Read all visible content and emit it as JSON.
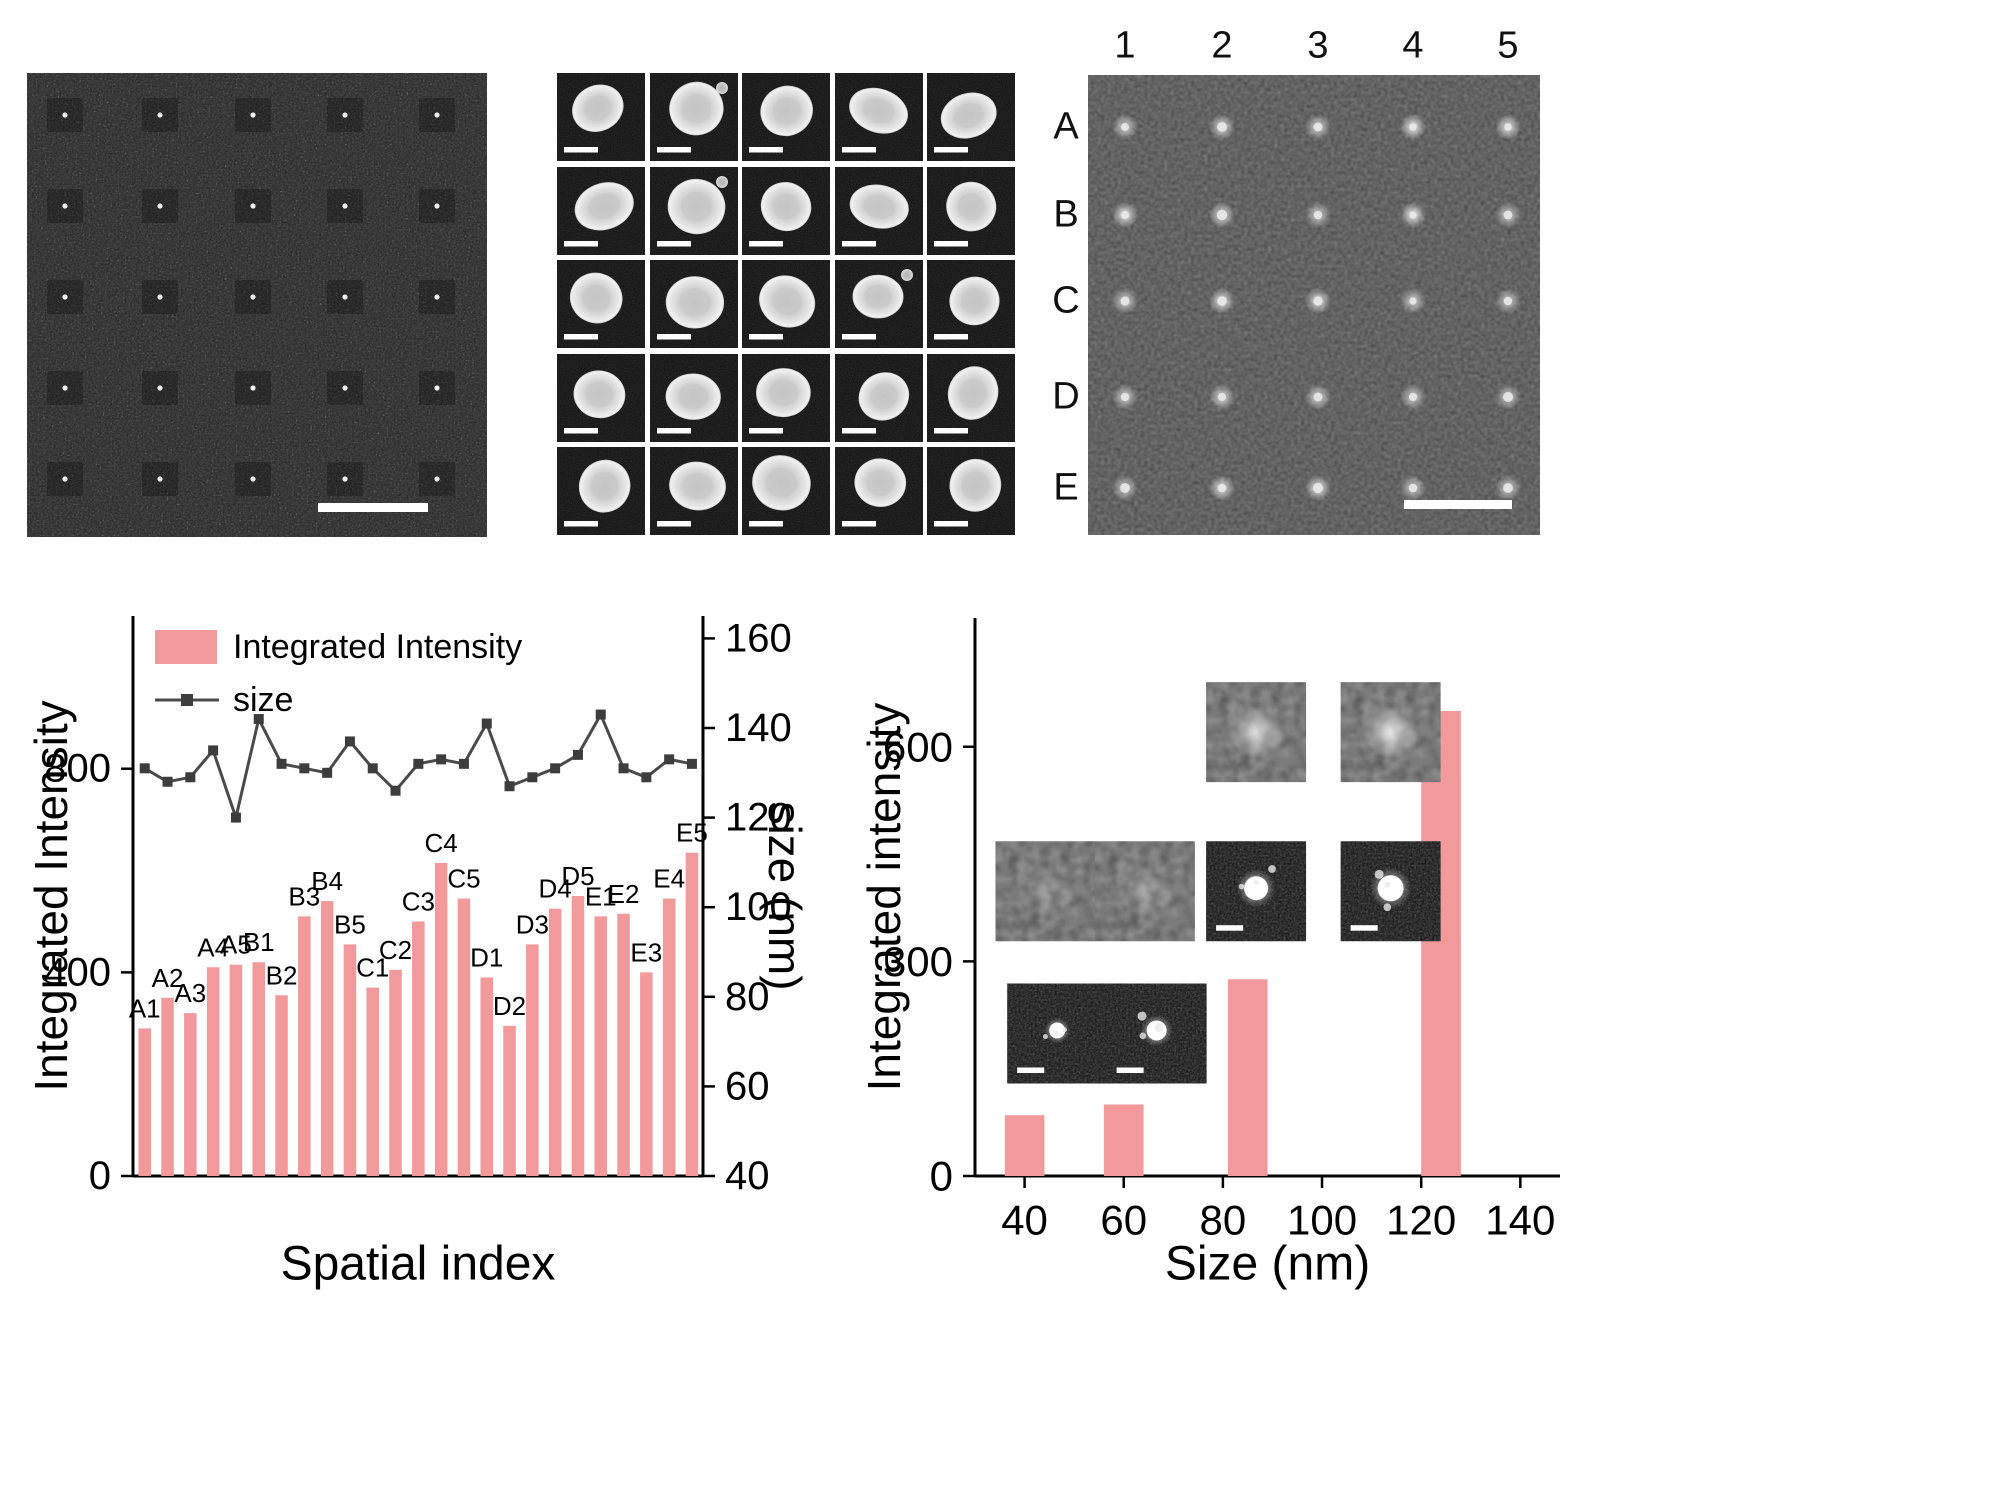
{
  "figure": {
    "panels": {
      "sem_overview": {
        "description_name": "sem-array-overview",
        "scalebar": true,
        "grid_rows": 5,
        "grid_cols": 5
      },
      "particle_gallery": {
        "rows": 5,
        "cols": 5,
        "scalebar_per_cell": true
      },
      "spot_map": {
        "col_labels": [
          "1",
          "2",
          "3",
          "4",
          "5"
        ],
        "row_labels": [
          "A",
          "B",
          "C",
          "D",
          "E"
        ],
        "scalebar": true
      }
    }
  },
  "colors": {
    "bar": "#F2999C",
    "line": "#4a4a4a",
    "marker": "#3d3d3d",
    "axis": "#000000",
    "label_text": "#111111"
  },
  "chart_data": [
    {
      "type": "bar",
      "subtype": "bar+line-dual-axis",
      "xlabel": "Spatial index",
      "ylabel_left": "Integrated Intensity",
      "ylabel_right": "size (nm)",
      "legend": [
        "Integrated Intensity",
        "size"
      ],
      "legend_position": "top-left-inside",
      "categories": [
        "A1",
        "A2",
        "A3",
        "A4",
        "A5",
        "B1",
        "B2",
        "B3",
        "B4",
        "B5",
        "C1",
        "C2",
        "C3",
        "C4",
        "C5",
        "D1",
        "D2",
        "D3",
        "D4",
        "D5",
        "E1",
        "E2",
        "E3",
        "E4",
        "E5"
      ],
      "series": [
        {
          "name": "Integrated Intensity",
          "type": "bar",
          "axis": "left",
          "values": [
            290,
            350,
            320,
            410,
            415,
            420,
            355,
            510,
            540,
            455,
            370,
            405,
            500,
            615,
            545,
            390,
            295,
            455,
            525,
            550,
            510,
            515,
            400,
            545,
            635
          ]
        },
        {
          "name": "size",
          "type": "line",
          "axis": "right",
          "values": [
            131,
            128,
            129,
            135,
            120,
            142,
            132,
            131,
            130,
            137,
            131,
            126,
            132,
            133,
            132,
            141,
            127,
            129,
            131,
            134,
            143,
            131,
            129,
            133,
            132
          ]
        }
      ],
      "left_ticks": [
        0,
        400,
        800
      ],
      "left_range": [
        0,
        1100
      ],
      "right_ticks": [
        40,
        60,
        80,
        100,
        120,
        140,
        160
      ],
      "right_range": [
        40,
        165
      ],
      "grid": false
    },
    {
      "type": "bar",
      "xlabel": "Size (nm)",
      "ylabel": "Integrated intensity",
      "x": [
        40,
        60,
        85,
        124
      ],
      "values": [
        85,
        100,
        275,
        650
      ],
      "bar_width_nm": 8,
      "x_ticks": [
        40,
        60,
        80,
        100,
        120,
        140
      ],
      "y_ticks": [
        0,
        300,
        600
      ],
      "x_range": [
        30,
        148
      ],
      "y_range": [
        0,
        780
      ],
      "grid": false,
      "insets": [
        {
          "style": "blurred",
          "fx": 0.035,
          "fy": 0.4,
          "glow": 0.22
        },
        {
          "style": "blurred",
          "fx": 0.205,
          "fy": 0.4,
          "glow": 0.3
        },
        {
          "style": "blurred",
          "fx": 0.395,
          "fy": 0.115,
          "glow": 0.75
        },
        {
          "style": "blurred",
          "fx": 0.625,
          "fy": 0.115,
          "glow": 0.85
        },
        {
          "style": "particle",
          "fx": 0.055,
          "fy": 0.655,
          "r": 8,
          "scalebar": true
        },
        {
          "style": "particle",
          "fx": 0.225,
          "fy": 0.655,
          "r": 10,
          "scalebar": true
        },
        {
          "style": "particle",
          "fx": 0.395,
          "fy": 0.4,
          "r": 12,
          "scalebar": true
        },
        {
          "style": "particle",
          "fx": 0.625,
          "fy": 0.4,
          "r": 13,
          "scalebar": true
        }
      ]
    }
  ]
}
